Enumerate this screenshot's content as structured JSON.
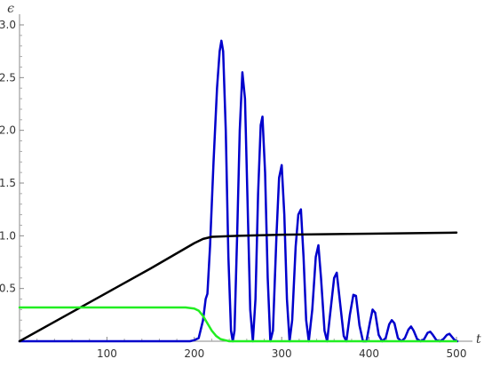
{
  "chart_data": {
    "type": "line",
    "title": "",
    "xlabel": "t",
    "ylabel": "ϵ",
    "xlim": [
      0,
      500
    ],
    "ylim": [
      0,
      3.0
    ],
    "x_ticks": [
      100,
      200,
      300,
      400,
      500
    ],
    "x_tick_labels": [
      "100",
      "200",
      "300",
      "400",
      "500"
    ],
    "y_ticks": [
      0.5,
      1.0,
      1.5,
      2.0,
      2.5,
      3.0
    ],
    "y_tick_labels": [
      "0.5",
      "1.0",
      "1.5",
      "2.0",
      "2.5",
      "3.0"
    ],
    "grid": false,
    "legend": "none",
    "series": [
      {
        "color": "#0000cc",
        "points": [
          [
            0,
            0
          ],
          [
            100,
            0
          ],
          [
            150,
            0
          ],
          [
            180,
            0
          ],
          [
            195,
            0
          ],
          [
            200,
            0.01
          ],
          [
            205,
            0.03
          ],
          [
            210,
            0.2
          ],
          [
            213,
            0.4
          ],
          [
            215,
            0.45
          ],
          [
            218,
            0.9
          ],
          [
            222,
            1.7
          ],
          [
            226,
            2.4
          ],
          [
            229,
            2.75
          ],
          [
            231,
            2.85
          ],
          [
            233,
            2.75
          ],
          [
            236,
            2.0
          ],
          [
            239,
            0.8
          ],
          [
            242,
            0.1
          ],
          [
            244,
            0.0
          ],
          [
            246,
            0.1
          ],
          [
            249,
            1.0
          ],
          [
            252,
            2.0
          ],
          [
            255,
            2.55
          ],
          [
            258,
            2.3
          ],
          [
            261,
            1.3
          ],
          [
            264,
            0.3
          ],
          [
            267,
            0.0
          ],
          [
            270,
            0.4
          ],
          [
            273,
            1.4
          ],
          [
            276,
            2.05
          ],
          [
            278,
            2.13
          ],
          [
            281,
            1.6
          ],
          [
            284,
            0.6
          ],
          [
            287,
            0.0
          ],
          [
            290,
            0.1
          ],
          [
            294,
            1.0
          ],
          [
            297,
            1.55
          ],
          [
            300,
            1.67
          ],
          [
            303,
            1.2
          ],
          [
            306,
            0.4
          ],
          [
            309,
            0.0
          ],
          [
            312,
            0.2
          ],
          [
            316,
            0.9
          ],
          [
            319,
            1.2
          ],
          [
            322,
            1.25
          ],
          [
            325,
            0.8
          ],
          [
            328,
            0.2
          ],
          [
            331,
            0.0
          ],
          [
            335,
            0.3
          ],
          [
            339,
            0.8
          ],
          [
            342,
            0.91
          ],
          [
            345,
            0.6
          ],
          [
            349,
            0.1
          ],
          [
            352,
            0.0
          ],
          [
            356,
            0.3
          ],
          [
            360,
            0.6
          ],
          [
            363,
            0.65
          ],
          [
            367,
            0.35
          ],
          [
            371,
            0.05
          ],
          [
            374,
            0.0
          ],
          [
            378,
            0.25
          ],
          [
            382,
            0.44
          ],
          [
            385,
            0.43
          ],
          [
            389,
            0.15
          ],
          [
            393,
            0.0
          ],
          [
            397,
            0.0
          ],
          [
            401,
            0.18
          ],
          [
            404,
            0.3
          ],
          [
            407,
            0.27
          ],
          [
            411,
            0.06
          ],
          [
            415,
            0.0
          ],
          [
            419,
            0.03
          ],
          [
            423,
            0.16
          ],
          [
            426,
            0.2
          ],
          [
            429,
            0.17
          ],
          [
            433,
            0.03
          ],
          [
            437,
            0.0
          ],
          [
            441,
            0.03
          ],
          [
            445,
            0.11
          ],
          [
            448,
            0.14
          ],
          [
            451,
            0.1
          ],
          [
            455,
            0.02
          ],
          [
            459,
            0.0
          ],
          [
            463,
            0.02
          ],
          [
            467,
            0.08
          ],
          [
            470,
            0.09
          ],
          [
            473,
            0.06
          ],
          [
            477,
            0.01
          ],
          [
            481,
            0.0
          ],
          [
            485,
            0.02
          ],
          [
            489,
            0.06
          ],
          [
            492,
            0.07
          ],
          [
            495,
            0.04
          ],
          [
            498,
            0.01
          ],
          [
            501,
            0.0
          ]
        ]
      },
      {
        "color": "#000000",
        "points": [
          [
            0,
            0
          ],
          [
            50,
            0.23
          ],
          [
            100,
            0.46
          ],
          [
            150,
            0.69
          ],
          [
            200,
            0.93
          ],
          [
            210,
            0.97
          ],
          [
            220,
            0.99
          ],
          [
            250,
            1.0
          ],
          [
            300,
            1.01
          ],
          [
            400,
            1.02
          ],
          [
            500,
            1.03
          ]
        ]
      },
      {
        "color": "#22ee22",
        "points": [
          [
            0,
            0.32
          ],
          [
            50,
            0.32
          ],
          [
            100,
            0.32
          ],
          [
            150,
            0.32
          ],
          [
            190,
            0.32
          ],
          [
            200,
            0.31
          ],
          [
            205,
            0.29
          ],
          [
            210,
            0.24
          ],
          [
            215,
            0.17
          ],
          [
            220,
            0.1
          ],
          [
            225,
            0.05
          ],
          [
            230,
            0.02
          ],
          [
            235,
            0.01
          ],
          [
            240,
            0.0
          ],
          [
            300,
            0.0
          ],
          [
            400,
            0.0
          ],
          [
            500,
            0.0
          ]
        ]
      }
    ]
  }
}
